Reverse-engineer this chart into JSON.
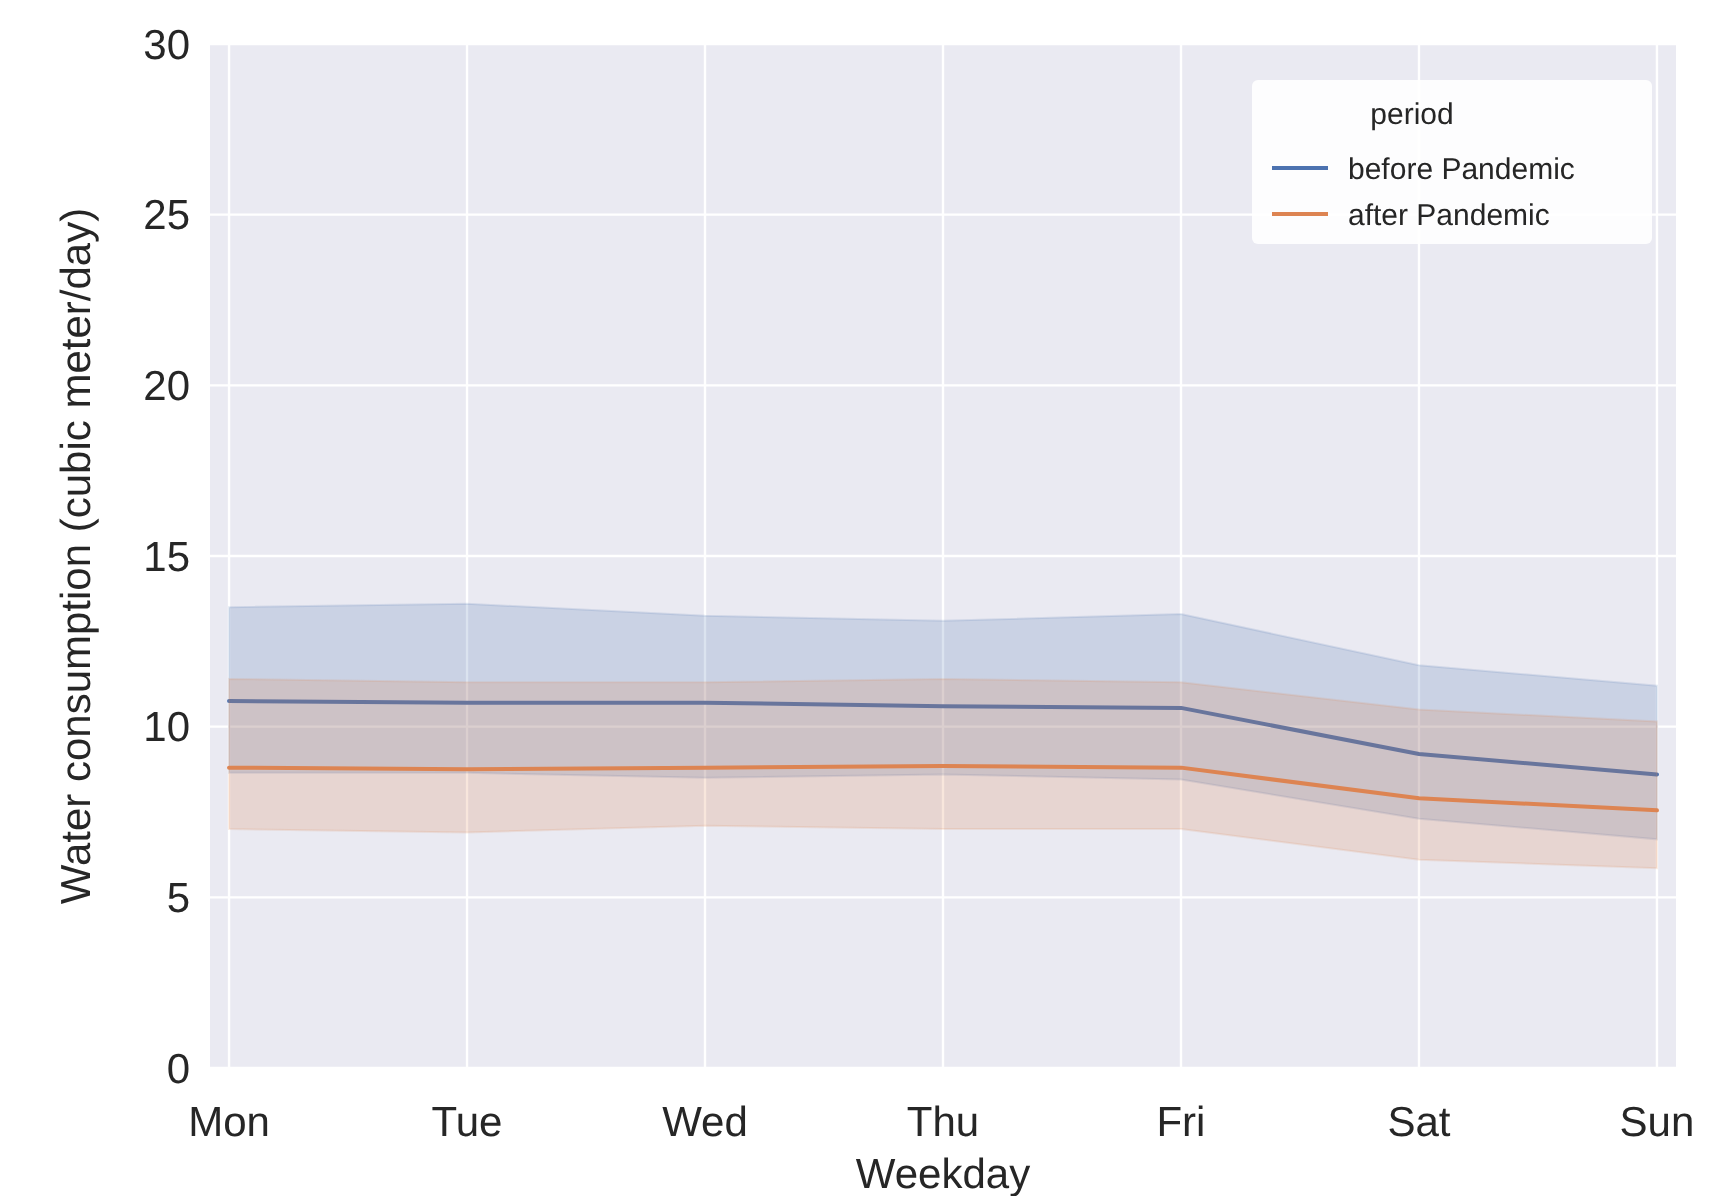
{
  "chart_data": {
    "type": "line",
    "xlabel": "Weekday",
    "ylabel": "Water consumption (cubic meter/day)",
    "legend_title": "period",
    "legend": "top right",
    "grid": true,
    "categories": [
      "Mon",
      "Tue",
      "Wed",
      "Thu",
      "Fri",
      "Sat",
      "Sun"
    ],
    "ylim": [
      0,
      30
    ],
    "yticks": [
      0,
      5,
      10,
      15,
      20,
      25,
      30
    ],
    "series": [
      {
        "name": "before Pandemic",
        "color": "#4c72b0",
        "values": [
          10.75,
          10.7,
          10.7,
          10.6,
          10.55,
          9.2,
          8.6
        ],
        "lower": [
          8.65,
          8.65,
          8.5,
          8.6,
          8.45,
          7.3,
          6.7
        ],
        "upper": [
          13.5,
          13.6,
          13.25,
          13.1,
          13.3,
          11.8,
          11.2
        ]
      },
      {
        "name": "after Pandemic",
        "color": "#dd8452",
        "values": [
          8.8,
          8.75,
          8.8,
          8.85,
          8.8,
          7.9,
          7.55
        ],
        "lower": [
          7.0,
          6.9,
          7.1,
          7.0,
          7.0,
          6.1,
          5.85
        ],
        "upper": [
          11.4,
          11.3,
          11.3,
          11.4,
          11.3,
          10.5,
          10.15
        ]
      }
    ]
  }
}
